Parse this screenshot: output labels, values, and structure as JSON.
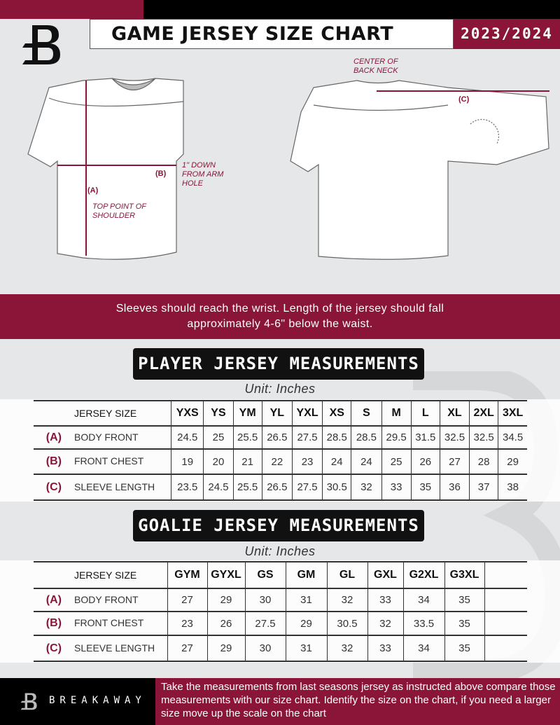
{
  "header": {
    "title": "GAME JERSEY SIZE CHART",
    "season": "2023/2024"
  },
  "diagram": {
    "center_back_neck": "CENTER OF BACK NECK",
    "label_a": "(A)",
    "label_b": "(B)",
    "label_c": "(C)",
    "arm_hole_note": "1\" DOWN FROM ARM HOLE",
    "shoulder_note": "TOP POINT OF SHOULDER"
  },
  "banner": {
    "text_line1": "Sleeves should reach the wrist. Length of the jersey should fall",
    "text_line2": "approximately 4-6\" below the waist."
  },
  "player": {
    "title": "PLAYER JERSEY MEASUREMENTS",
    "unit": "Unit: Inches",
    "size_header": "JERSEY SIZE",
    "sizes": [
      "YXS",
      "YS",
      "YM",
      "YL",
      "YXL",
      "XS",
      "S",
      "M",
      "L",
      "XL",
      "2XL",
      "3XL"
    ],
    "rows": [
      {
        "key": "(A)",
        "label": "BODY FRONT",
        "values": [
          "24.5",
          "25",
          "25.5",
          "26.5",
          "27.5",
          "28.5",
          "28.5",
          "29.5",
          "31.5",
          "32.5",
          "32.5",
          "34.5"
        ]
      },
      {
        "key": "(B)",
        "label": "FRONT CHEST",
        "values": [
          "19",
          "20",
          "21",
          "22",
          "23",
          "24",
          "24",
          "25",
          "26",
          "27",
          "28",
          "29"
        ]
      },
      {
        "key": "(C)",
        "label": "SLEEVE LENGTH",
        "values": [
          "23.5",
          "24.5",
          "25.5",
          "26.5",
          "27.5",
          "30.5",
          "32",
          "33",
          "35",
          "36",
          "37",
          "38"
        ]
      }
    ]
  },
  "goalie": {
    "title": "GOALIE JERSEY MEASUREMENTS",
    "unit": "Unit: Inches",
    "size_header": "JERSEY SIZE",
    "sizes": [
      "GYM",
      "GYXL",
      "GS",
      "GM",
      "GL",
      "GXL",
      "G2XL",
      "G3XL",
      ""
    ],
    "rows": [
      {
        "key": "(A)",
        "label": "BODY FRONT",
        "values": [
          "27",
          "29",
          "30",
          "31",
          "32",
          "33",
          "34",
          "35",
          ""
        ]
      },
      {
        "key": "(B)",
        "label": "FRONT CHEST",
        "values": [
          "23",
          "26",
          "27.5",
          "29",
          "30.5",
          "32",
          "33.5",
          "35",
          ""
        ]
      },
      {
        "key": "(C)",
        "label": "SLEEVE LENGTH",
        "values": [
          "27",
          "29",
          "30",
          "31",
          "32",
          "33",
          "34",
          "35",
          ""
        ]
      }
    ]
  },
  "footer": {
    "brand": "BREAKAWAY",
    "note": "Take the measurements from last seasons jersey as instructed above compare those measurements  with our size chart. Identify the size on the chart, if you need a larger size move up the scale on the chart"
  },
  "colors": {
    "accent": "#8a1538",
    "dark": "#111111",
    "background": "#e6e7e8"
  }
}
